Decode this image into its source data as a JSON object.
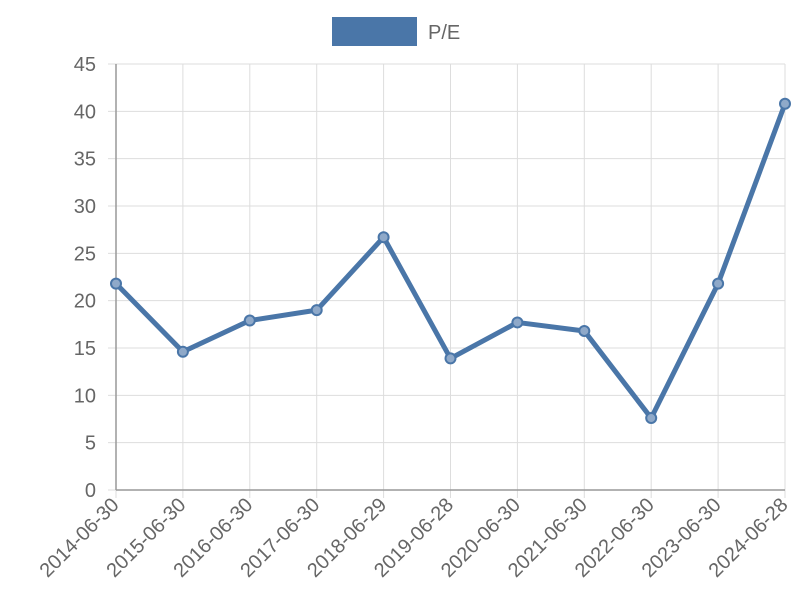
{
  "chart_data": {
    "type": "line",
    "categories": [
      "2014-06-30",
      "2015-06-30",
      "2016-06-30",
      "2017-06-30",
      "2018-06-29",
      "2019-06-28",
      "2020-06-30",
      "2021-06-30",
      "2022-06-30",
      "2023-06-30",
      "2024-06-28"
    ],
    "series": [
      {
        "name": "P/E",
        "color": "#4a76a8",
        "values": [
          21.8,
          14.6,
          17.9,
          19.0,
          26.7,
          13.9,
          17.7,
          16.8,
          7.6,
          21.8,
          40.8
        ]
      }
    ],
    "ylim": [
      0,
      45
    ],
    "yticks": [
      0,
      5,
      10,
      15,
      20,
      25,
      30,
      35,
      40,
      45
    ],
    "grid": true,
    "legend": "top"
  }
}
